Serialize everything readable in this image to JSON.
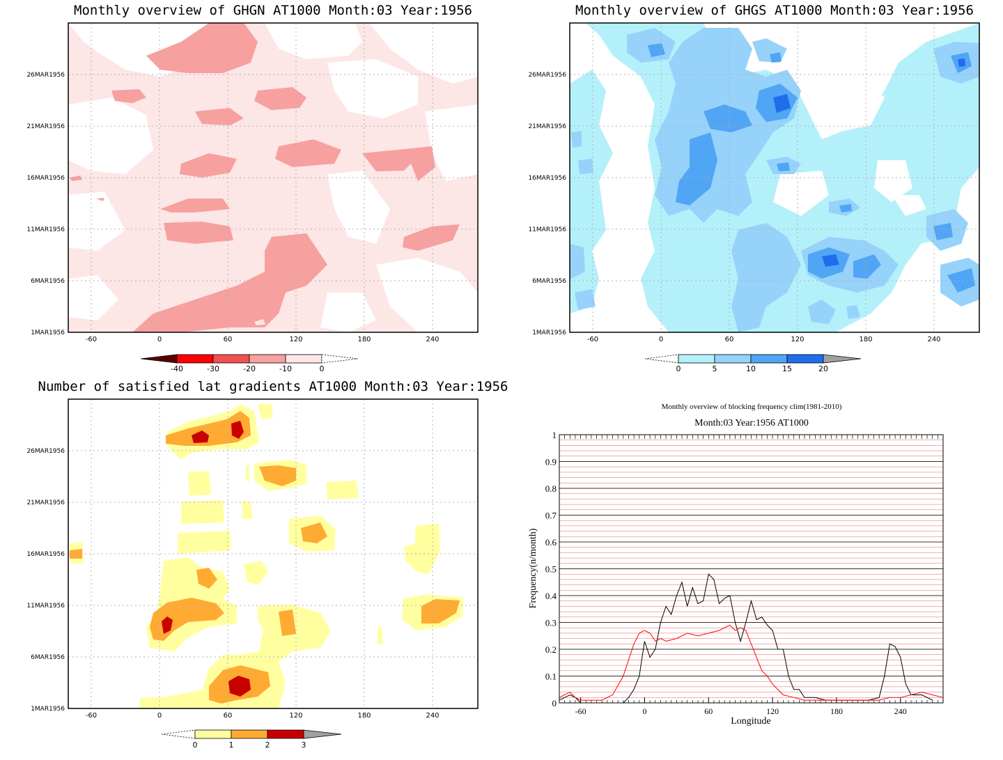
{
  "panels": {
    "ghgn": {
      "title": "Monthly overview of GHGN AT1000 Month:03 Year:1956",
      "colorbar_labels": [
        "-40",
        "-30",
        "-20",
        "-10",
        "0"
      ],
      "colors": [
        "#5a0000",
        "#ff0000",
        "#f25050",
        "#f7a0a0",
        "#fde6e6",
        "#ffffff"
      ]
    },
    "ghgs": {
      "title": "Monthly overview of GHGS AT1000 Month:03 Year:1956",
      "colorbar_labels": [
        "0",
        "5",
        "10",
        "15",
        "20"
      ],
      "colors": [
        "#ffffff",
        "#b4f0fa",
        "#96d2fa",
        "#50a5f5",
        "#1e6eeb",
        "#a0a0a0"
      ]
    },
    "nsat": {
      "title": "Number of satisfied lat gradients AT1000 Month:03 Year:1956",
      "colorbar_labels": [
        "0",
        "1",
        "2",
        "3"
      ],
      "colors": [
        "#ffffff",
        "#ffffa0",
        "#ffaa32",
        "#c80000",
        "#a0a0a0"
      ]
    },
    "time_axis": [
      "1MAR1956",
      "6MAR1956",
      "11MAR1956",
      "16MAR1956",
      "21MAR1956",
      "26MAR1956"
    ],
    "lon_axis": [
      "-60",
      "0",
      "60",
      "120",
      "180",
      "240"
    ]
  },
  "chart_data": [
    {
      "type": "heatmap",
      "title": "Monthly overview of GHGN AT1000 Month:03 Year:1956",
      "x_ticks": [
        -60,
        0,
        60,
        120,
        180,
        240
      ],
      "y_ticks": [
        "1MAR1956",
        "6MAR1956",
        "11MAR1956",
        "16MAR1956",
        "21MAR1956",
        "26MAR1956"
      ],
      "xlim": [
        -80,
        280
      ],
      "levels": [
        -40,
        -30,
        -20,
        -10,
        0
      ]
    },
    {
      "type": "heatmap",
      "title": "Monthly overview of GHGS AT1000 Month:03 Year:1956",
      "x_ticks": [
        -60,
        0,
        60,
        120,
        180,
        240
      ],
      "y_ticks": [
        "1MAR1956",
        "6MAR1956",
        "11MAR1956",
        "16MAR1956",
        "21MAR1956",
        "26MAR1956"
      ],
      "xlim": [
        -80,
        280
      ],
      "levels": [
        0,
        5,
        10,
        15,
        20
      ]
    },
    {
      "type": "heatmap",
      "title": "Number of satisfied lat gradients AT1000 Month:03 Year:1956",
      "x_ticks": [
        -60,
        0,
        60,
        120,
        180,
        240
      ],
      "y_ticks": [
        "1MAR1956",
        "6MAR1956",
        "11MAR1956",
        "16MAR1956",
        "21MAR1956",
        "26MAR1956"
      ],
      "xlim": [
        -80,
        280
      ],
      "levels": [
        0,
        1,
        2,
        3
      ]
    },
    {
      "type": "line",
      "title": "Monthly overview of blocking frequency clim(1981-2010)",
      "subtitle": "Month:03 Year:1956  AT1000",
      "xlabel": "Longitude",
      "ylabel": "Frequency(n/month)",
      "xlim": [
        -80,
        280
      ],
      "ylim": [
        0,
        1
      ],
      "x_ticks": [
        -60,
        0,
        60,
        120,
        180,
        240
      ],
      "y_ticks": [
        0,
        0.1,
        0.2,
        0.3,
        0.4,
        0.5,
        0.6,
        0.7,
        0.8,
        0.9,
        1
      ],
      "grid": true,
      "series": [
        {
          "color": "#000000",
          "x": [
            -80,
            -70,
            -65,
            -60,
            -50,
            -40,
            -30,
            -20,
            -15,
            -10,
            -5,
            0,
            5,
            10,
            15,
            20,
            25,
            30,
            35,
            40,
            45,
            50,
            55,
            60,
            65,
            70,
            75,
            80,
            85,
            90,
            95,
            100,
            105,
            110,
            115,
            120,
            125,
            130,
            135,
            140,
            145,
            150,
            155,
            160,
            170,
            180,
            190,
            200,
            210,
            220,
            225,
            230,
            235,
            240,
            245,
            250,
            260,
            270
          ],
          "y": [
            0.01,
            0.03,
            0.02,
            0,
            0,
            0,
            0,
            0,
            0.02,
            0.05,
            0.1,
            0.23,
            0.17,
            0.2,
            0.3,
            0.36,
            0.33,
            0.4,
            0.45,
            0.36,
            0.43,
            0.37,
            0.38,
            0.48,
            0.46,
            0.37,
            0.39,
            0.4,
            0.3,
            0.23,
            0.3,
            0.38,
            0.31,
            0.32,
            0.29,
            0.27,
            0.2,
            0.2,
            0.1,
            0.05,
            0.05,
            0.02,
            0.02,
            0.02,
            0.01,
            0.01,
            0.01,
            0.01,
            0.01,
            0.02,
            0.1,
            0.22,
            0.21,
            0.17,
            0.07,
            0.03,
            0.03,
            0.01
          ]
        },
        {
          "color": "#ff0000",
          "x": [
            -80,
            -70,
            -65,
            -60,
            -50,
            -40,
            -30,
            -20,
            -10,
            -5,
            0,
            5,
            10,
            15,
            20,
            30,
            40,
            50,
            60,
            70,
            80,
            85,
            90,
            95,
            100,
            110,
            115,
            120,
            130,
            140,
            150,
            160,
            170,
            180,
            200,
            220,
            230,
            240,
            250,
            260,
            270,
            280
          ],
          "y": [
            0.02,
            0.04,
            0.02,
            0.01,
            0.01,
            0.01,
            0.03,
            0.1,
            0.22,
            0.26,
            0.27,
            0.26,
            0.23,
            0.24,
            0.23,
            0.24,
            0.26,
            0.25,
            0.26,
            0.27,
            0.29,
            0.27,
            0.28,
            0.27,
            0.22,
            0.12,
            0.1,
            0.07,
            0.03,
            0.02,
            0.01,
            0.01,
            0.01,
            0.01,
            0.01,
            0.01,
            0.02,
            0.02,
            0.03,
            0.04,
            0.03,
            0.02
          ]
        }
      ]
    }
  ]
}
